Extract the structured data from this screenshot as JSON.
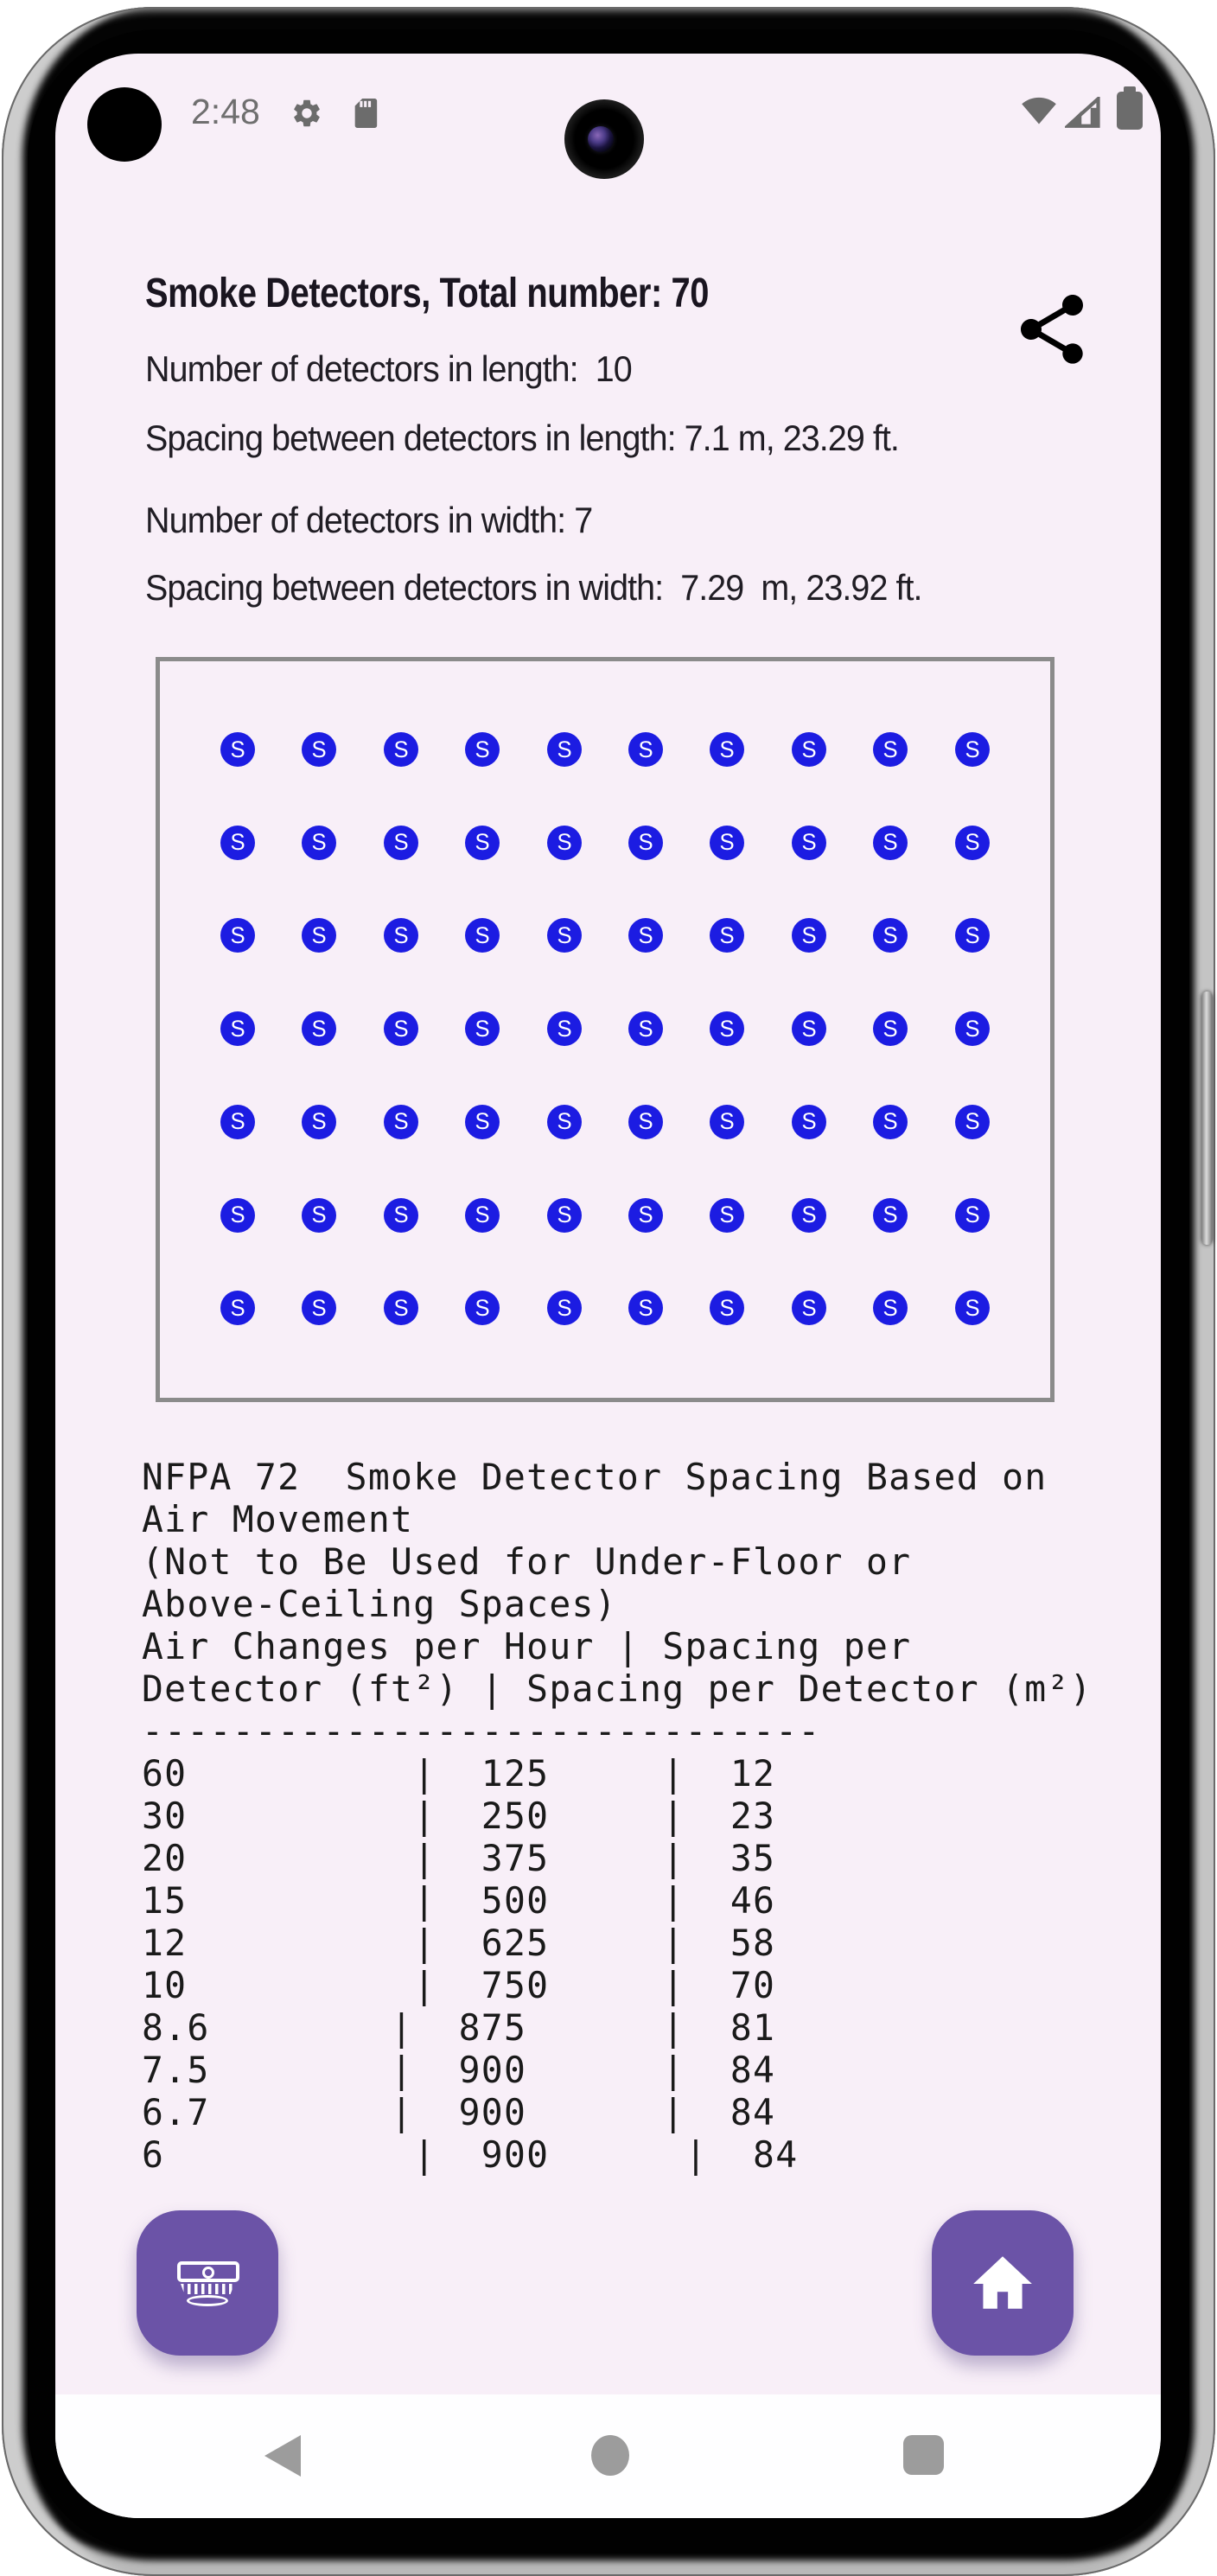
{
  "colors": {
    "screen_bg": "#f8eff8",
    "detector_blue": "#1c1ce2",
    "button_purple": "#6b53a7",
    "room_border_gray": "#8b8b8b",
    "nav_bar_bg": "#fefeff",
    "status_icon_gray": "#6c6c6c",
    "nav_icon_gray": "#9c9c9c",
    "text_dark": "#201d24"
  },
  "status_bar": {
    "time": "2:48",
    "icons": [
      "settings-icon",
      "sd-card-icon",
      "wifi-icon",
      "signal-icon",
      "battery-icon"
    ]
  },
  "header": {
    "title": "Smoke Detectors, Total number: 70",
    "share_icon": "share-icon"
  },
  "results": {
    "lines": [
      "Number of detectors in length:  10",
      "Spacing between detectors in length: 7.1 m, 23.29 ft.",
      "Number of detectors in width: 7",
      "Spacing between detectors in width:  7.29  m, 23.92 ft."
    ],
    "detectors_in_length": 10,
    "detectors_in_width": 7,
    "total_detectors": 70,
    "spacing_length_m": 7.1,
    "spacing_length_ft": 23.29,
    "spacing_width_m": 7.29,
    "spacing_width_ft": 23.92
  },
  "floor_plan": {
    "rows": 7,
    "cols": 10,
    "total": 70,
    "detector_label": "S"
  },
  "nfpa_block": {
    "lines": [
      "NFPA 72  Smoke Detector Spacing Based on",
      "Air Movement",
      "(Not to Be Used for Under-Floor or",
      "Above-Ceiling Spaces)",
      "Air Changes per Hour | Spacing per",
      "Detector (ft²) | Spacing per Detector (m²)",
      "------------------------------",
      "60          |  125     |  12",
      "30          |  250     |  23",
      "20          |  375     |  35",
      "15          |  500     |  46",
      "12          |  625     |  58",
      "10          |  750     |  70",
      "8.6        |  875      |  81",
      "7.5        |  900      |  84",
      "6.7        |  900      |  84",
      "6           |  900      |  84"
    ],
    "table": {
      "columns": [
        "Air Changes per Hour",
        "Spacing per Detector (ft²)",
        "Spacing per Detector (m²)"
      ],
      "rows": [
        [
          "60",
          "125",
          "12"
        ],
        [
          "30",
          "250",
          "23"
        ],
        [
          "20",
          "375",
          "35"
        ],
        [
          "15",
          "500",
          "46"
        ],
        [
          "12",
          "625",
          "58"
        ],
        [
          "10",
          "750",
          "70"
        ],
        [
          "8.6",
          "875",
          "81"
        ],
        [
          "7.5",
          "900",
          "84"
        ],
        [
          "6.7",
          "900",
          "84"
        ],
        [
          "6",
          "900",
          "84"
        ]
      ]
    }
  },
  "action_buttons": {
    "left": "smoke-detector-screen-button",
    "right": "home-button"
  },
  "nav_bar": {
    "items": [
      "back",
      "home",
      "recents"
    ]
  }
}
